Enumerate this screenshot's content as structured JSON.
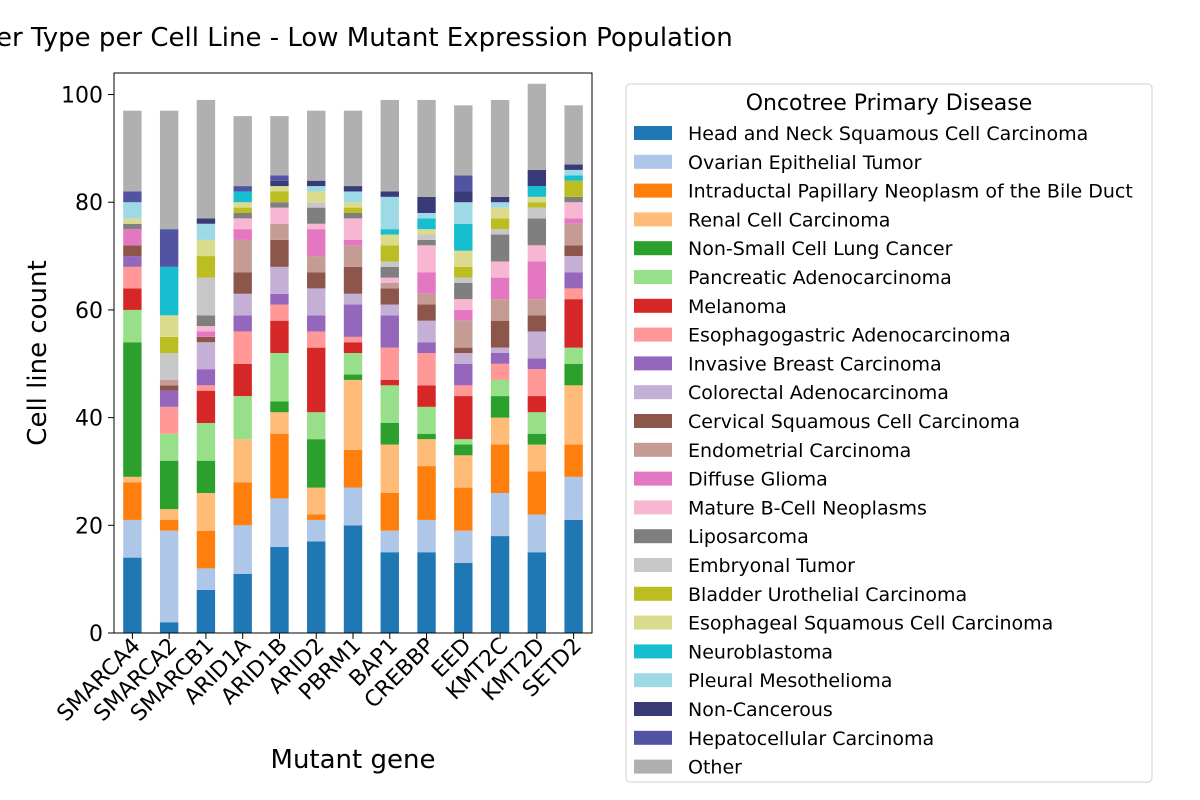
{
  "chart_data": {
    "type": "bar",
    "stacked": true,
    "title": "er Type per Cell Line - Low Mutant Expression Population",
    "xlabel": "Mutant gene",
    "ylabel": "Cell line count",
    "ylim": [
      0,
      104
    ],
    "yticks": [
      0,
      20,
      40,
      60,
      80,
      100
    ],
    "grid": false,
    "legend_title": "Oncotree Primary Disease",
    "legend_position": "right, outside plot",
    "categories": [
      "SMARCA4",
      "SMARCA2",
      "SMARCB1",
      "ARID1A",
      "ARID1B",
      "ARID2",
      "PBRM1",
      "BAP1",
      "CREBBP",
      "EED",
      "KMT2C",
      "KMT2D",
      "SETD2"
    ],
    "series": [
      {
        "name": "Head and Neck Squamous Cell Carcinoma",
        "color": "#1f77b4",
        "values": [
          14,
          2,
          8,
          11,
          16,
          17,
          20,
          15,
          15,
          13,
          18,
          15,
          21
        ]
      },
      {
        "name": "Ovarian Epithelial Tumor",
        "color": "#aec7e8",
        "values": [
          7,
          17,
          4,
          9,
          9,
          4,
          7,
          4,
          6,
          6,
          8,
          7,
          8
        ]
      },
      {
        "name": "Intraductal Papillary Neoplasm of the Bile Duct",
        "color": "#ff7f0e",
        "values": [
          7,
          2,
          7,
          8,
          12,
          1,
          7,
          7,
          10,
          8,
          9,
          8,
          6
        ]
      },
      {
        "name": "Renal Cell Carcinoma",
        "color": "#ffbb78",
        "values": [
          1,
          2,
          7,
          8,
          4,
          5,
          13,
          9,
          5,
          6,
          5,
          5,
          11
        ]
      },
      {
        "name": "Non-Small Cell Lung Cancer",
        "color": "#2ca02c",
        "values": [
          25,
          9,
          6,
          0,
          2,
          9,
          1,
          4,
          1,
          2,
          4,
          2,
          4
        ]
      },
      {
        "name": "Pancreatic Adenocarcinoma",
        "color": "#98df8a",
        "values": [
          6,
          5,
          7,
          8,
          9,
          5,
          4,
          7,
          5,
          1,
          3,
          4,
          3
        ]
      },
      {
        "name": "Melanoma",
        "color": "#d62728",
        "values": [
          4,
          0,
          6,
          6,
          6,
          12,
          2,
          1,
          4,
          8,
          0,
          3,
          9
        ]
      },
      {
        "name": "Esophagogastric Adenocarcinoma",
        "color": "#ff9896",
        "values": [
          4,
          5,
          1,
          6,
          3,
          3,
          1,
          6,
          6,
          2,
          3,
          5,
          2
        ]
      },
      {
        "name": "Invasive Breast Carcinoma",
        "color": "#9467bd",
        "values": [
          2,
          3,
          3,
          3,
          2,
          3,
          6,
          6,
          2,
          4,
          2,
          2,
          3
        ]
      },
      {
        "name": "Colorectal Adenocarcinoma",
        "color": "#c5b0d5",
        "values": [
          0,
          0,
          5,
          4,
          5,
          5,
          2,
          2,
          4,
          2,
          1,
          5,
          3
        ]
      },
      {
        "name": "Cervical Squamous Cell Carcinoma",
        "color": "#8c564b",
        "values": [
          2,
          1,
          1,
          4,
          5,
          3,
          5,
          3,
          3,
          1,
          5,
          3,
          2
        ]
      },
      {
        "name": "Endometrial Carcinoma",
        "color": "#c49c94",
        "values": [
          0,
          1,
          0,
          6,
          3,
          3,
          4,
          1,
          2,
          5,
          4,
          3,
          4
        ]
      },
      {
        "name": "Diffuse Glioma",
        "color": "#e377c2",
        "values": [
          3,
          0,
          1,
          2,
          0,
          5,
          1,
          0,
          4,
          2,
          4,
          7,
          1
        ]
      },
      {
        "name": "Mature B-Cell Neoplasms",
        "color": "#f7b6d2",
        "values": [
          0,
          0,
          1,
          2,
          3,
          1,
          4,
          1,
          5,
          2,
          3,
          3,
          3
        ]
      },
      {
        "name": "Liposarcoma",
        "color": "#7f7f7f",
        "values": [
          1,
          0,
          2,
          1,
          1,
          3,
          1,
          2,
          1,
          3,
          5,
          5,
          1
        ]
      },
      {
        "name": "Embryonal Tumor",
        "color": "#c7c7c7",
        "values": [
          0,
          5,
          7,
          0,
          0,
          1,
          0,
          1,
          1,
          1,
          1,
          2,
          0
        ]
      },
      {
        "name": "Bladder Urothelial Carcinoma",
        "color": "#bcbd22",
        "values": [
          0,
          3,
          4,
          1,
          2,
          0,
          1,
          3,
          0,
          2,
          2,
          1,
          3
        ]
      },
      {
        "name": "Esophageal Squamous Cell Carcinoma",
        "color": "#dbdb8d",
        "values": [
          1,
          4,
          3,
          1,
          1,
          2,
          1,
          2,
          1,
          3,
          2,
          1,
          0
        ]
      },
      {
        "name": "Neuroblastoma",
        "color": "#17becf",
        "values": [
          0,
          9,
          0,
          2,
          0,
          0,
          0,
          1,
          2,
          5,
          0,
          2,
          1
        ]
      },
      {
        "name": "Pleural Mesothelioma",
        "color": "#9edae5",
        "values": [
          3,
          0,
          3,
          0,
          0,
          1,
          2,
          6,
          1,
          4,
          1,
          0,
          1
        ]
      },
      {
        "name": "Non-Cancerous",
        "color": "#393b79",
        "values": [
          0,
          0,
          1,
          0,
          1,
          1,
          1,
          1,
          3,
          2,
          1,
          3,
          1
        ]
      },
      {
        "name": "Hepatocellular Carcinoma",
        "color": "#5254a3",
        "values": [
          2,
          7,
          0,
          1,
          1,
          0,
          0,
          0,
          0,
          3,
          0,
          0,
          0
        ]
      },
      {
        "name": "Other",
        "color": "#b0b0b0",
        "values": [
          15,
          22,
          22,
          13,
          11,
          13,
          14,
          17,
          18,
          13,
          18,
          16,
          11
        ]
      }
    ]
  }
}
